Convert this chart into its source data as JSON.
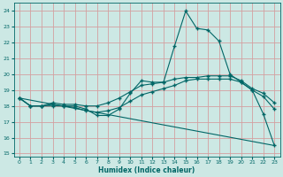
{
  "xlabel": "Humidex (Indice chaleur)",
  "background_color": "#cce8e4",
  "grid_color": "#d4a0a0",
  "line_color": "#006666",
  "xlim": [
    -0.5,
    23.5
  ],
  "ylim": [
    14.8,
    24.5
  ],
  "yticks": [
    15,
    16,
    17,
    18,
    19,
    20,
    21,
    22,
    23,
    24
  ],
  "xticks": [
    0,
    1,
    2,
    3,
    4,
    5,
    6,
    7,
    8,
    9,
    10,
    11,
    12,
    13,
    14,
    15,
    16,
    17,
    18,
    19,
    20,
    21,
    22,
    23
  ],
  "lines": [
    {
      "x": [
        0,
        1,
        2,
        3,
        4,
        5,
        6,
        7,
        8,
        9,
        10,
        11,
        12,
        13,
        14,
        15,
        16,
        17,
        18,
        19,
        20,
        21,
        22,
        23
      ],
      "y": [
        18.5,
        18.0,
        18.0,
        18.0,
        18.0,
        18.0,
        17.8,
        17.4,
        17.4,
        17.8,
        18.8,
        19.6,
        19.5,
        19.5,
        21.8,
        24.0,
        22.9,
        22.8,
        22.1,
        20.0,
        19.5,
        19.0,
        17.5,
        15.5
      ],
      "marker": "+"
    },
    {
      "x": [
        0,
        1,
        2,
        3,
        4,
        5,
        6,
        7,
        8,
        9,
        10,
        11,
        12,
        13,
        14,
        15,
        16,
        17,
        18,
        19,
        20,
        21,
        22,
        23
      ],
      "y": [
        18.5,
        18.0,
        18.0,
        18.2,
        18.1,
        18.1,
        18.0,
        18.0,
        18.2,
        18.5,
        18.9,
        19.3,
        19.4,
        19.5,
        19.7,
        19.8,
        19.8,
        19.9,
        19.9,
        19.9,
        19.6,
        19.1,
        18.8,
        18.2
      ],
      "marker": "+"
    },
    {
      "x": [
        0,
        1,
        2,
        3,
        4,
        5,
        6,
        7,
        8,
        9,
        10,
        11,
        12,
        13,
        14,
        15,
        16,
        17,
        18,
        19,
        20,
        21,
        22,
        23
      ],
      "y": [
        18.5,
        18.0,
        18.0,
        18.1,
        18.0,
        17.9,
        17.7,
        17.6,
        17.7,
        17.9,
        18.3,
        18.7,
        18.9,
        19.1,
        19.3,
        19.6,
        19.7,
        19.7,
        19.7,
        19.7,
        19.5,
        19.0,
        18.6,
        17.8
      ],
      "marker": "+"
    },
    {
      "x": [
        0,
        23
      ],
      "y": [
        18.5,
        15.5
      ],
      "marker": null
    }
  ]
}
